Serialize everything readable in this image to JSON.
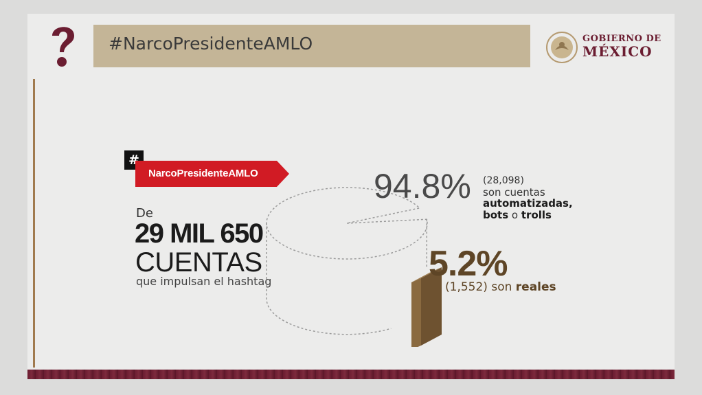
{
  "header": {
    "title": "#NarcoPresidenteAMLO"
  },
  "logo": {
    "line1": "GOBIERNO DE",
    "line2": "MÉXICO",
    "seal_icon": "national-seal-icon"
  },
  "icons": {
    "question": "question-mark-icon",
    "hash": "hash-icon"
  },
  "hashtag_label": {
    "hash_symbol": "#",
    "tag": "NarcoPresidenteAMLO"
  },
  "summary": {
    "prefix": "De",
    "total": "29 MIL 650",
    "unit": "CUENTAS",
    "description": "que impulsan el hashtag"
  },
  "bots": {
    "percent": "94.8%",
    "count": "(28,098)",
    "line1": "son cuentas",
    "line2": "automatizadas,",
    "line3_a": "bots",
    "line3_b": " o ",
    "line3_c": "trolls"
  },
  "real": {
    "percent": "5.2%",
    "count": "(1,552) son ",
    "label": "reales"
  },
  "colors": {
    "header_bg": "#c4b597",
    "tag_red": "#d11b24",
    "real_brown": "#5e4526",
    "gov_maroon": "#6b1d31"
  },
  "chart_data": {
    "type": "pie",
    "title": "",
    "total": 29650,
    "slices": [
      {
        "label": "automatizadas, bots o trolls",
        "value": 28098,
        "percent": 94.8
      },
      {
        "label": "reales",
        "value": 1552,
        "percent": 5.2
      }
    ]
  }
}
